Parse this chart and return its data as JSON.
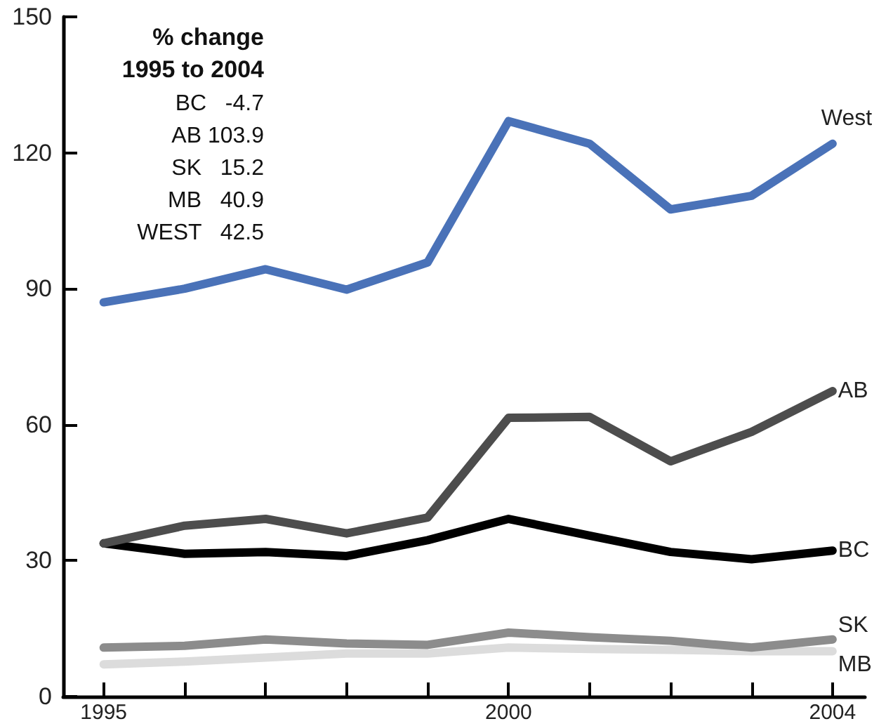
{
  "chart_data": {
    "type": "line",
    "x": [
      1995,
      1996,
      1997,
      1998,
      1999,
      2000,
      2001,
      2002,
      2003,
      2004
    ],
    "series": [
      {
        "name": "West",
        "color": "#4a72b8",
        "values": [
          87,
          90,
          94.3,
          89.8,
          95.8,
          127,
          122,
          107.5,
          110.5,
          122
        ]
      },
      {
        "name": "AB",
        "color": "#4d4d4d",
        "values": [
          33.8,
          37.7,
          39.2,
          36,
          39.5,
          61.5,
          61.7,
          51.9,
          58.4,
          67.4
        ]
      },
      {
        "name": "BC",
        "color": "#000000",
        "values": [
          33.8,
          31.5,
          31.9,
          31,
          34.5,
          39.2,
          35.5,
          31.9,
          30.3,
          32.2
        ]
      },
      {
        "name": "SK",
        "color": "#8c8c8c",
        "values": [
          10.8,
          11.2,
          12.6,
          11.7,
          11.4,
          14.1,
          13.1,
          12.3,
          10.8,
          12.6
        ]
      },
      {
        "name": "MB",
        "color": "#dcdcdc",
        "values": [
          7.1,
          7.7,
          8.6,
          9.5,
          9.5,
          10.8,
          10.5,
          10.3,
          10,
          10
        ]
      }
    ],
    "xlim": [
      1994.5,
      2004.4
    ],
    "xticks": [
      1995,
      {
        "value": 1996,
        "label": null
      },
      {
        "value": 1997,
        "label": null
      },
      {
        "value": 1998,
        "label": null
      },
      {
        "value": 1999,
        "label": null
      },
      2000,
      {
        "value": 2001,
        "label": null
      },
      {
        "value": 2002,
        "label": null
      },
      {
        "value": 2003,
        "label": null
      },
      2004
    ],
    "ylim": [
      0,
      150
    ],
    "yticks": [
      0,
      30,
      60,
      90,
      120,
      150
    ],
    "annotations": [
      "% change",
      "1995 to 2004",
      "BC   -4.7",
      "AB 103.9",
      "SK   15.2",
      "MB   40.9",
      "WEST   42.5"
    ],
    "grid": false,
    "legend": false,
    "marker": "none",
    "line_style": "solid"
  }
}
